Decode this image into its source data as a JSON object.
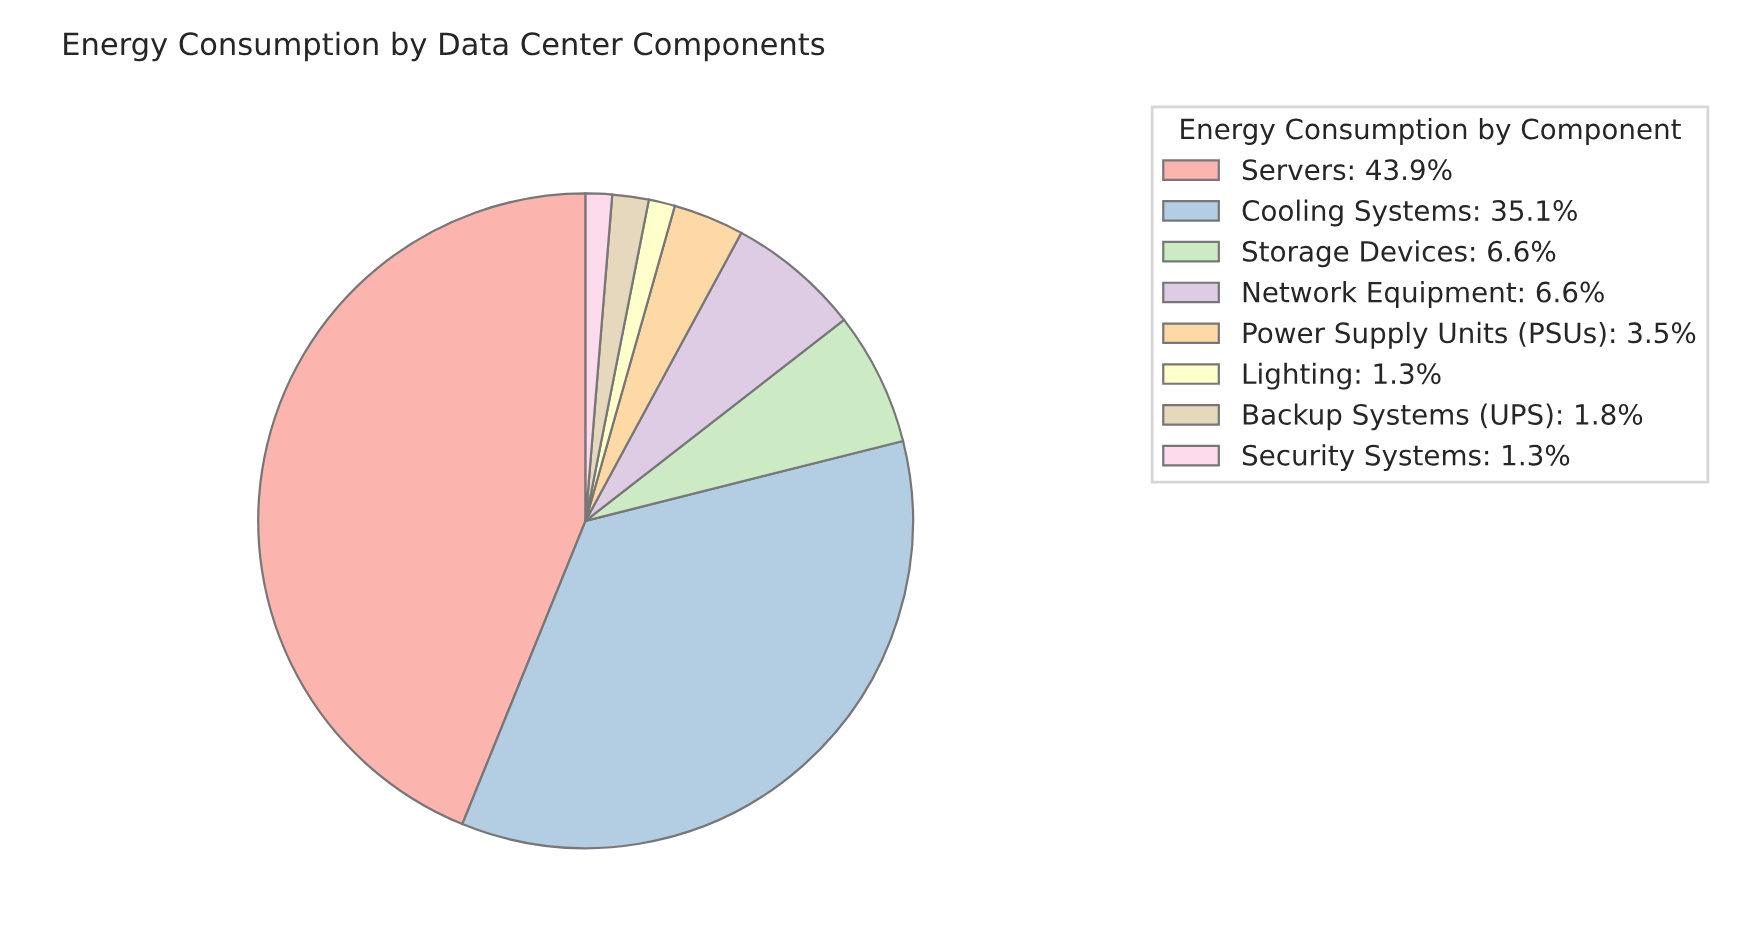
{
  "chart_data": {
    "type": "pie",
    "title": "Energy Consumption by Data Center Components",
    "legend_title": "Energy Consumption by Component",
    "categories": [
      "Servers: 43.9%",
      "Cooling Systems: 35.1%",
      "Storage Devices: 6.6%",
      "Network Equipment: 6.6%",
      "Power Supply Units (PSUs): 3.5%",
      "Lighting: 1.3%",
      "Backup Systems (UPS): 1.8%",
      "Security Systems: 1.3%"
    ],
    "values": [
      43.9,
      35.1,
      6.6,
      6.6,
      3.5,
      1.3,
      1.8,
      1.3
    ],
    "colors": [
      "#fbb4ae",
      "#b3cde3",
      "#ccebc5",
      "#decbe4",
      "#fed9a6",
      "#ffffcc",
      "#e5d8bd",
      "#fddaec"
    ],
    "legend": "top right"
  }
}
